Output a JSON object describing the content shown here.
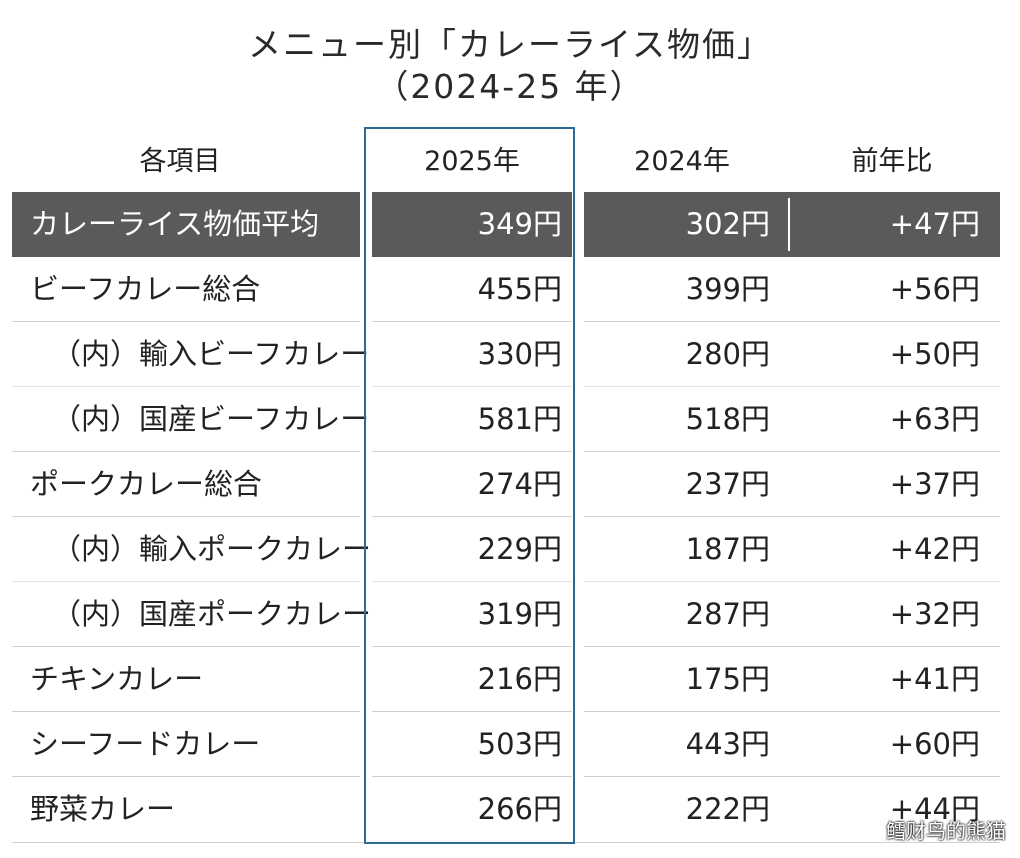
{
  "title": {
    "line1": "メニュー別「カレーライス物価」",
    "line2": "（2024-25 年）"
  },
  "chart_data": {
    "type": "table",
    "title": "メニュー別「カレーライス物価」（2024-25 年）",
    "columns": [
      "各項目",
      "2025年",
      "2024年",
      "前年比"
    ],
    "rows": [
      {
        "label": "カレーライス物価平均",
        "v2025": "349円",
        "v2024": "302円",
        "diff": "+47円"
      },
      {
        "label": "ビーフカレー総合",
        "v2025": "455円",
        "v2024": "399円",
        "diff": "+56円"
      },
      {
        "label": "（内）輸入ビーフカレー",
        "v2025": "330円",
        "v2024": "280円",
        "diff": "+50円"
      },
      {
        "label": "（内）国産ビーフカレー",
        "v2025": "581円",
        "v2024": "518円",
        "diff": "+63円"
      },
      {
        "label": "ポークカレー総合",
        "v2025": "274円",
        "v2024": "237円",
        "diff": "+37円"
      },
      {
        "label": "（内）輸入ポークカレー",
        "v2025": "229円",
        "v2024": "187円",
        "diff": "+42円"
      },
      {
        "label": "（内）国産ポークカレー",
        "v2025": "319円",
        "v2024": "287円",
        "diff": "+32円"
      },
      {
        "label": "チキンカレー",
        "v2025": "216円",
        "v2024": "175円",
        "diff": "+41円"
      },
      {
        "label": "シーフードカレー",
        "v2025": "503円",
        "v2024": "443円",
        "diff": "+60円"
      },
      {
        "label": "野菜カレー",
        "v2025": "266円",
        "v2024": "222円",
        "diff": "+44円"
      }
    ]
  },
  "watermark": "鳕财鸟的熊猫"
}
